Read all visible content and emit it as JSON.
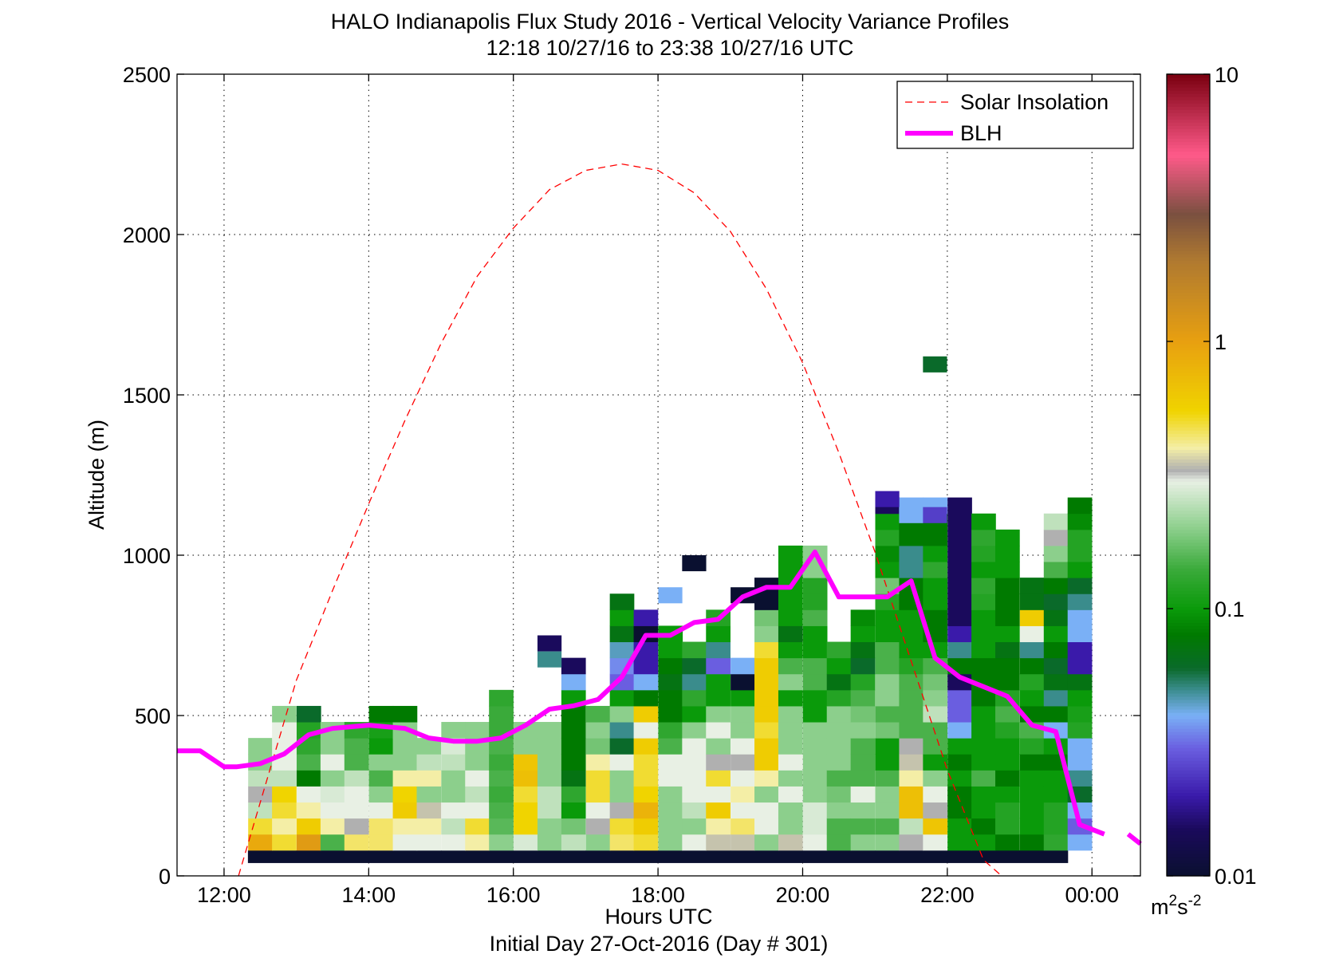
{
  "chart_data": {
    "type": "heatmap",
    "title": "HALO Indianapolis Flux Study 2016 - Vertical Velocity Variance Profiles",
    "subtitle": "12:18 10/27/16 to 23:38 10/27/16  UTC",
    "xlabel": "Hours UTC",
    "xlabel2": "Initial Day 27-Oct-2016 (Day # 301)",
    "ylabel": "Altitude (m)",
    "xlim": [
      11.35,
      24.67
    ],
    "ylim": [
      0,
      2500
    ],
    "x_ticks": [
      {
        "value": 12,
        "label": "12:00"
      },
      {
        "value": 14,
        "label": "14:00"
      },
      {
        "value": 16,
        "label": "16:00"
      },
      {
        "value": 18,
        "label": "18:00"
      },
      {
        "value": 20,
        "label": "20:00"
      },
      {
        "value": 22,
        "label": "22:00"
      },
      {
        "value": 24,
        "label": "00:00"
      }
    ],
    "y_ticks": [
      {
        "value": 0,
        "label": "0"
      },
      {
        "value": 500,
        "label": "500"
      },
      {
        "value": 1000,
        "label": "1000"
      },
      {
        "value": 1500,
        "label": "1500"
      },
      {
        "value": 2000,
        "label": "2000"
      },
      {
        "value": 2500,
        "label": "2500"
      }
    ],
    "grid": true,
    "legend_position": "top-right",
    "legend": [
      {
        "label": "Solar Insolation",
        "color": "#ff0000",
        "style": "dashed"
      },
      {
        "label": "BLH",
        "color": "#ff00ff",
        "style": "solid"
      }
    ],
    "colorbar": {
      "scale": "log",
      "range": [
        0.01,
        10
      ],
      "ticks": [
        {
          "value": 0.01,
          "label": "0.01"
        },
        {
          "value": 0.1,
          "label": "0.1"
        },
        {
          "value": 1,
          "label": "1"
        },
        {
          "value": 10,
          "label": "10"
        }
      ],
      "unit_base": "m",
      "unit_base_sup": "2",
      "unit_second": "s",
      "unit_second_sup": "-2",
      "colors": [
        {
          "value": 0.01,
          "color": "#0a1030"
        },
        {
          "value": 0.015,
          "color": "#1a0a5c"
        },
        {
          "value": 0.02,
          "color": "#3a1aaa"
        },
        {
          "value": 0.03,
          "color": "#6a5ee0"
        },
        {
          "value": 0.04,
          "color": "#7ab0f6"
        },
        {
          "value": 0.05,
          "color": "#3a8c8c"
        },
        {
          "value": 0.06,
          "color": "#0a6a2a"
        },
        {
          "value": 0.08,
          "color": "#007a00"
        },
        {
          "value": 0.1,
          "color": "#0a9a0a"
        },
        {
          "value": 0.14,
          "color": "#3aaa3a"
        },
        {
          "value": 0.2,
          "color": "#8ccf8c"
        },
        {
          "value": 0.3,
          "color": "#e8f0e4"
        },
        {
          "value": 0.33,
          "color": "#b0b0b0"
        },
        {
          "value": 0.4,
          "color": "#f4eea6"
        },
        {
          "value": 0.55,
          "color": "#f0d400"
        },
        {
          "value": 1.0,
          "color": "#e8a010"
        },
        {
          "value": 2.0,
          "color": "#b07a30"
        },
        {
          "value": 3.0,
          "color": "#7a5040"
        },
        {
          "value": 5.0,
          "color": "#ff5a8a"
        },
        {
          "value": 10.0,
          "color": "#7a0010"
        }
      ]
    },
    "bin_height_m": 50,
    "cell_width_h": 0.333,
    "baseline_band": {
      "x_start": 12.33,
      "x_end": 23.67,
      "y_bottom": 40,
      "y_top": 80,
      "value": 0.01
    },
    "columns": [
      {
        "x": 12.5,
        "values": [
          0.9,
          0.5,
          0.25,
          0.33,
          0.25,
          0.2,
          0.2
        ]
      },
      {
        "x": 12.83,
        "values": [
          0.5,
          0.4,
          0.5,
          0.55,
          0.25,
          0.3,
          0.3,
          0.3,
          0.2
        ]
      },
      {
        "x": 13.17,
        "values": [
          1.1,
          0.6,
          0.4,
          0.3,
          0.08,
          0.15,
          0.13,
          0.12,
          0.06
        ]
      },
      {
        "x": 13.5,
        "values": [
          0.15,
          0.4,
          0.3,
          0.28,
          0.2,
          0.3,
          0.2,
          0.2
        ]
      },
      {
        "x": 13.83,
        "values": [
          0.45,
          0.33,
          0.3,
          0.3,
          0.25,
          0.15,
          0.15,
          0.13
        ]
      },
      {
        "x": 14.17,
        "values": [
          0.45,
          0.45,
          0.3,
          0.2,
          0.15,
          0.2,
          0.1,
          0.11,
          0.08
        ]
      },
      {
        "x": 14.5,
        "values": [
          0.3,
          0.4,
          0.6,
          0.55,
          0.4,
          0.2,
          0.2,
          0.2,
          0.08
        ]
      },
      {
        "x": 14.83,
        "values": [
          0.3,
          0.4,
          0.35,
          0.2,
          0.4,
          0.25,
          0.2
        ]
      },
      {
        "x": 15.17,
        "values": [
          0.3,
          0.25,
          0.3,
          0.2,
          0.2,
          0.25,
          0.28,
          0.2
        ]
      },
      {
        "x": 15.5,
        "values": [
          0.4,
          0.5,
          0.3,
          0.25,
          0.3,
          0.2,
          0.2,
          0.2
        ]
      },
      {
        "x": 15.83,
        "values": [
          0.2,
          0.16,
          0.15,
          0.14,
          0.15,
          0.14,
          0.15,
          0.14,
          0.14,
          0.13
        ]
      },
      {
        "x": 16.17,
        "values": [
          0.28,
          0.55,
          0.55,
          0.5,
          0.7,
          0.65,
          0.2,
          0.2
        ]
      },
      {
        "x": 16.5,
        "values": [
          0.2,
          0.2,
          0.25,
          0.25,
          0.2,
          0.2,
          0.2,
          0.2
        ]
      },
      {
        "x": 16.83,
        "values": [
          0.25,
          0.18,
          0.1,
          0.13,
          0.07,
          0.08,
          0.08,
          0.08,
          0.08,
          0.1,
          0.04,
          0.015
        ]
      },
      {
        "x": 17.17,
        "values": [
          0.2,
          0.33,
          0.3,
          0.5,
          0.5,
          0.4,
          0.18,
          0.2,
          0.15
        ]
      },
      {
        "x": 17.5,
        "values": [
          0.45,
          0.5,
          0.33,
          0.2,
          0.2,
          0.3,
          0.06,
          0.05,
          0.2,
          0.1,
          0.03,
          0.035,
          0.045,
          0.07,
          0.1,
          0.07
        ]
      },
      {
        "x": 17.83,
        "values": [
          0.5,
          0.6,
          0.8,
          0.55,
          0.5,
          0.5,
          0.6,
          0.3,
          0.6,
          0.08,
          0.04,
          0.02,
          0.02,
          0.01,
          0.02
        ]
      },
      {
        "x": 18.17,
        "values": [
          0.2,
          0.2,
          0.2,
          0.2,
          0.3,
          0.3,
          0.15,
          0.13,
          0.08,
          0.08,
          0.07,
          0.08,
          0.1,
          0.1
        ]
      },
      {
        "x": 18.5,
        "values": [
          0.3,
          0.2,
          0.25,
          0.3,
          0.3,
          0.3,
          0.3,
          0.2,
          0.1,
          0.13,
          0.05,
          0.06,
          0.13
        ]
      },
      {
        "x": 18.83,
        "values": [
          0.35,
          0.4,
          0.6,
          0.3,
          0.5,
          0.33,
          0.2,
          0.3,
          0.2,
          0.1,
          0.1,
          0.03,
          0.05,
          0.1,
          0.12
        ]
      },
      {
        "x": 19.17,
        "values": [
          0.35,
          0.45,
          0.3,
          0.4,
          0.3,
          0.33,
          0.3,
          0.2,
          0.2,
          0.1,
          0.01,
          0.04
        ]
      },
      {
        "x": 19.5,
        "values": [
          0.2,
          0.3,
          0.3,
          0.2,
          0.4,
          0.6,
          0.6,
          0.5,
          0.6,
          0.6,
          0.6,
          0.6,
          0.5,
          0.2,
          0.18,
          0.01,
          0.01
        ]
      },
      {
        "x": 19.83,
        "values": [
          0.35,
          0.2,
          0.2,
          0.3,
          0.2,
          0.3,
          0.2,
          0.2,
          0.2,
          0.1,
          0.2,
          0.15,
          0.1,
          0.07,
          0.1,
          0.1,
          0.1,
          0.1,
          0.1
        ]
      },
      {
        "x": 20.17,
        "values": [
          0.3,
          0.28,
          0.28,
          0.2,
          0.2,
          0.2,
          0.2,
          0.2,
          0.1,
          0.1,
          0.15,
          0.15,
          0.1,
          0.1,
          0.15,
          0.12,
          0.12,
          0.2,
          0.2
        ]
      },
      {
        "x": 20.5,
        "values": [
          0.15,
          0.15,
          0.2,
          0.18,
          0.15,
          0.2,
          0.2,
          0.2,
          0.2,
          0.12,
          0.07,
          0.1,
          0.13
        ]
      },
      {
        "x": 20.83,
        "values": [
          0.2,
          0.15,
          0.2,
          0.3,
          0.15,
          0.15,
          0.15,
          0.2,
          0.18,
          0.15,
          0.12,
          0.06,
          0.07,
          0.1,
          0.09
        ]
      },
      {
        "x": 21.17,
        "values": [
          0.2,
          0.15,
          0.2,
          0.2,
          0.15,
          0.1,
          0.1,
          0.18,
          0.15,
          0.2,
          0.2,
          0.15,
          0.15,
          0.1,
          0.1,
          0.12,
          0.18,
          0.1,
          0.09,
          0.12,
          0.1,
          0.015
        ]
      },
      {
        "x": 21.5,
        "values": [
          0.33,
          0.25,
          0.7,
          0.7,
          0.4,
          0.35,
          0.33,
          0.15,
          0.15,
          0.15,
          0.15,
          0.12,
          0.1,
          0.1,
          0.1,
          0.08,
          0.08,
          0.05,
          0.05,
          0.08,
          0.08,
          0.04
        ]
      },
      {
        "x": 21.83,
        "values": [
          0.3,
          0.65,
          0.33,
          0.3,
          0.2,
          0.1,
          0.15,
          0.15,
          0.25,
          0.2,
          0.18,
          0.15,
          0.1,
          0.08,
          0.08,
          0.1,
          0.1,
          0.13,
          0.1,
          0.08,
          0.08,
          0.04
        ]
      },
      {
        "x": 22.17,
        "values": [
          0.1,
          0.1,
          0.08,
          0.08,
          0.1,
          0.08,
          0.1,
          0.04,
          0.03,
          0.03,
          0.015,
          0.08,
          0.05,
          0.02,
          0.015,
          0.015,
          0.015,
          0.015,
          0.015,
          0.015,
          0.015,
          0.015
        ]
      },
      {
        "x": 22.5,
        "values": [
          0.1,
          0.08,
          0.1,
          0.1,
          0.15,
          0.1,
          0.1,
          0.1,
          0.1,
          0.08,
          0.08,
          0.08,
          0.1,
          0.1,
          0.1,
          0.12,
          0.13,
          0.1,
          0.12,
          0.13,
          0.1
        ]
      },
      {
        "x": 22.83,
        "values": [
          0.08,
          0.12,
          0.12,
          0.1,
          0.08,
          0.1,
          0.1,
          0.12,
          0.15,
          0.12,
          0.08,
          0.08,
          0.07,
          0.1,
          0.08,
          0.08,
          0.08,
          0.1,
          0.1,
          0.1
        ]
      },
      {
        "x": 23.17,
        "values": [
          0.08,
          0.1,
          0.1,
          0.1,
          0.1,
          0.08,
          0.12,
          0.15,
          0.08,
          0.1,
          0.12,
          0.08,
          0.05,
          0.3,
          0.6,
          0.07,
          0.07
        ]
      },
      {
        "x": 23.5,
        "values": [
          0.13,
          0.12,
          0.12,
          0.1,
          0.1,
          0.08,
          0.1,
          0.04,
          0.08,
          0.05,
          0.07,
          0.06,
          0.08,
          0.1,
          0.07,
          0.06,
          0.08,
          0.15,
          0.2,
          0.33,
          0.25
        ]
      },
      {
        "x": 23.83,
        "values": [
          0.04,
          0.03,
          0.04,
          0.06,
          0.05,
          0.04,
          0.04,
          0.12,
          0.11,
          0.1,
          0.07,
          0.02,
          0.02,
          0.04,
          0.04,
          0.05,
          0.06,
          0.1,
          0.12,
          0.12,
          0.09,
          0.08
        ]
      }
    ],
    "isolated_cells": [
      {
        "x": 18.5,
        "y_bottom": 950,
        "value": 0.01
      },
      {
        "x": 19.17,
        "y_bottom": 850,
        "value": 0.01
      },
      {
        "x": 18.17,
        "y_bottom": 850,
        "value": 0.04
      },
      {
        "x": 21.83,
        "y_bottom": 1570,
        "value": 0.06
      },
      {
        "x": 21.17,
        "y_bottom": 1150,
        "value": 0.02
      },
      {
        "x": 21.5,
        "y_bottom": 1100,
        "value": 0.04
      },
      {
        "x": 21.83,
        "y_bottom": 1100,
        "value": 0.025
      },
      {
        "x": 16.5,
        "y_bottom": 700,
        "value": 0.015
      },
      {
        "x": 16.5,
        "y_bottom": 650,
        "value": 0.05
      }
    ],
    "series": [
      {
        "name": "BLH",
        "color": "#ff00ff",
        "x": [
          11.35,
          11.67,
          12.0,
          12.17,
          12.5,
          12.83,
          13.17,
          13.5,
          14.0,
          14.5,
          14.83,
          15.17,
          15.5,
          15.83,
          16.17,
          16.5,
          16.83,
          17.17,
          17.5,
          17.83,
          18.17,
          18.5,
          18.83,
          19.17,
          19.5,
          19.83,
          20.17,
          20.5,
          20.83,
          21.17,
          21.5,
          21.83,
          22.17,
          22.5,
          22.83,
          23.17,
          23.5,
          23.83,
          24.17,
          24.5,
          24.67
        ],
        "y": [
          390,
          390,
          340,
          340,
          350,
          380,
          440,
          460,
          470,
          460,
          430,
          420,
          420,
          430,
          470,
          520,
          530,
          550,
          620,
          750,
          750,
          790,
          800,
          870,
          900,
          900,
          1010,
          870,
          870,
          870,
          920,
          680,
          620,
          590,
          560,
          470,
          450,
          160,
          130,
          130,
          130
        ]
      },
      {
        "name": "Solar Insolation",
        "color": "#ff0000",
        "peak_x": 17.5,
        "peak_y": 2220,
        "x": [
          12.2,
          13.0,
          13.5,
          14.0,
          14.5,
          15.0,
          15.5,
          16.0,
          16.5,
          17.0,
          17.5,
          18.0,
          18.5,
          19.0,
          19.5,
          20.0,
          20.5,
          21.0,
          21.5,
          22.0,
          22.5,
          22.75
        ],
        "y": [
          0,
          610,
          890,
          1160,
          1420,
          1660,
          1870,
          2020,
          2140,
          2200,
          2220,
          2200,
          2130,
          2010,
          1830,
          1600,
          1320,
          1010,
          670,
          330,
          50,
          0
        ]
      }
    ]
  }
}
